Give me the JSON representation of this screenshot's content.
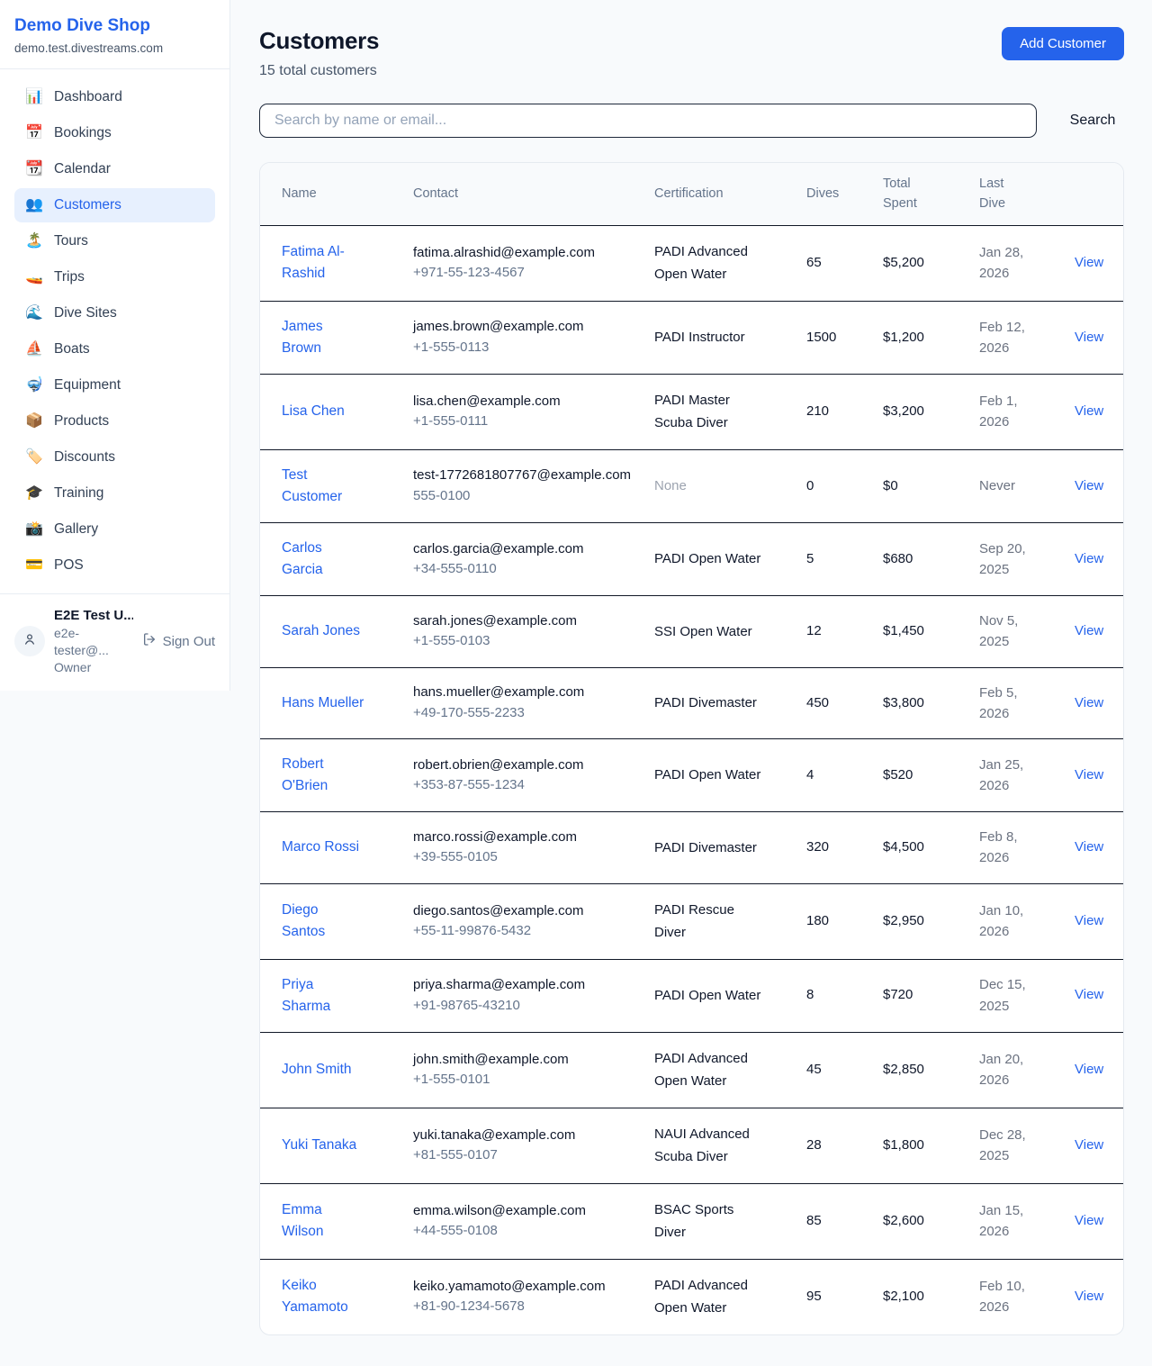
{
  "colors": {
    "accent": "#2563eb",
    "active_item_bg": "#e7f0fe",
    "page_bg": "#f8fafc",
    "muted_text": "#64748b",
    "row_divider": "#111827"
  },
  "sidebar": {
    "title": "Demo Dive Shop",
    "subdomain": "demo.test.divestreams.com",
    "items": [
      {
        "icon": "📊",
        "icon_name": "bar-chart-icon",
        "label": "Dashboard",
        "active": false
      },
      {
        "icon": "📅",
        "icon_name": "calendar-date-icon",
        "label": "Bookings",
        "active": false
      },
      {
        "icon": "📆",
        "icon_name": "tear-off-calendar-icon",
        "label": "Calendar",
        "active": false
      },
      {
        "icon": "👥",
        "icon_name": "people-icon",
        "label": "Customers",
        "active": true
      },
      {
        "icon": "🏝️",
        "icon_name": "island-icon",
        "label": "Tours",
        "active": false
      },
      {
        "icon": "🚤",
        "icon_name": "speedboat-icon",
        "label": "Trips",
        "active": false
      },
      {
        "icon": "🌊",
        "icon_name": "wave-icon",
        "label": "Dive Sites",
        "active": false
      },
      {
        "icon": "⛵",
        "icon_name": "sailboat-icon",
        "label": "Boats",
        "active": false
      },
      {
        "icon": "🤿",
        "icon_name": "diving-mask-icon",
        "label": "Equipment",
        "active": false
      },
      {
        "icon": "📦",
        "icon_name": "package-icon",
        "label": "Products",
        "active": false
      },
      {
        "icon": "🏷️",
        "icon_name": "tag-icon",
        "label": "Discounts",
        "active": false
      },
      {
        "icon": "🎓",
        "icon_name": "graduation-cap-icon",
        "label": "Training",
        "active": false
      },
      {
        "icon": "📸",
        "icon_name": "camera-icon",
        "label": "Gallery",
        "active": false
      },
      {
        "icon": "💳",
        "icon_name": "credit-card-icon",
        "label": "POS",
        "active": false
      }
    ],
    "user": {
      "name": "E2E Test U...",
      "email": "e2e-tester@...",
      "role": "Owner",
      "sign_out_label": "Sign Out"
    }
  },
  "header": {
    "title": "Customers",
    "subtitle": "15 total customers",
    "add_button_label": "Add Customer"
  },
  "search": {
    "placeholder": "Search by name or email...",
    "button_label": "Search"
  },
  "table": {
    "columns": [
      "Name",
      "Contact",
      "Certification",
      "Dives",
      "Total Spent",
      "Last Dive",
      ""
    ],
    "action_label": "View",
    "rows": [
      {
        "name": "Fatima Al-Rashid",
        "email": "fatima.alrashid@example.com",
        "phone": "+971-55-123-4567",
        "certification": "PADI Advanced Open Water",
        "dives": "65",
        "total_spent": "$5,200",
        "last_dive": "Jan 28, 2026"
      },
      {
        "name": "James Brown",
        "email": "james.brown@example.com",
        "phone": "+1-555-0113",
        "certification": "PADI Instructor",
        "dives": "1500",
        "total_spent": "$1,200",
        "last_dive": "Feb 12, 2026"
      },
      {
        "name": "Lisa Chen",
        "email": "lisa.chen@example.com",
        "phone": "+1-555-0111",
        "certification": "PADI Master Scuba Diver",
        "dives": "210",
        "total_spent": "$3,200",
        "last_dive": "Feb 1, 2026"
      },
      {
        "name": "Test Customer",
        "email": "test-1772681807767@example.com",
        "phone": "555-0100",
        "certification": "None",
        "dives": "0",
        "total_spent": "$0",
        "last_dive": "Never"
      },
      {
        "name": "Carlos Garcia",
        "email": "carlos.garcia@example.com",
        "phone": "+34-555-0110",
        "certification": "PADI Open Water",
        "dives": "5",
        "total_spent": "$680",
        "last_dive": "Sep 20, 2025"
      },
      {
        "name": "Sarah Jones",
        "email": "sarah.jones@example.com",
        "phone": "+1-555-0103",
        "certification": "SSI Open Water",
        "dives": "12",
        "total_spent": "$1,450",
        "last_dive": "Nov 5, 2025"
      },
      {
        "name": "Hans Mueller",
        "email": "hans.mueller@example.com",
        "phone": "+49-170-555-2233",
        "certification": "PADI Divemaster",
        "dives": "450",
        "total_spent": "$3,800",
        "last_dive": "Feb 5, 2026"
      },
      {
        "name": "Robert O'Brien",
        "email": "robert.obrien@example.com",
        "phone": "+353-87-555-1234",
        "certification": "PADI Open Water",
        "dives": "4",
        "total_spent": "$520",
        "last_dive": "Jan 25, 2026"
      },
      {
        "name": "Marco Rossi",
        "email": "marco.rossi@example.com",
        "phone": "+39-555-0105",
        "certification": "PADI Divemaster",
        "dives": "320",
        "total_spent": "$4,500",
        "last_dive": "Feb 8, 2026"
      },
      {
        "name": "Diego Santos",
        "email": "diego.santos@example.com",
        "phone": "+55-11-99876-5432",
        "certification": "PADI Rescue Diver",
        "dives": "180",
        "total_spent": "$2,950",
        "last_dive": "Jan 10, 2026"
      },
      {
        "name": "Priya Sharma",
        "email": "priya.sharma@example.com",
        "phone": "+91-98765-43210",
        "certification": "PADI Open Water",
        "dives": "8",
        "total_spent": "$720",
        "last_dive": "Dec 15, 2025"
      },
      {
        "name": "John Smith",
        "email": "john.smith@example.com",
        "phone": "+1-555-0101",
        "certification": "PADI Advanced Open Water",
        "dives": "45",
        "total_spent": "$2,850",
        "last_dive": "Jan 20, 2026"
      },
      {
        "name": "Yuki Tanaka",
        "email": "yuki.tanaka@example.com",
        "phone": "+81-555-0107",
        "certification": "NAUI Advanced Scuba Diver",
        "dives": "28",
        "total_spent": "$1,800",
        "last_dive": "Dec 28, 2025"
      },
      {
        "name": "Emma Wilson",
        "email": "emma.wilson@example.com",
        "phone": "+44-555-0108",
        "certification": "BSAC Sports Diver",
        "dives": "85",
        "total_spent": "$2,600",
        "last_dive": "Jan 15, 2026"
      },
      {
        "name": "Keiko Yamamoto",
        "email": "keiko.yamamoto@example.com",
        "phone": "+81-90-1234-5678",
        "certification": "PADI Advanced Open Water",
        "dives": "95",
        "total_spent": "$2,100",
        "last_dive": "Feb 10, 2026"
      }
    ]
  }
}
